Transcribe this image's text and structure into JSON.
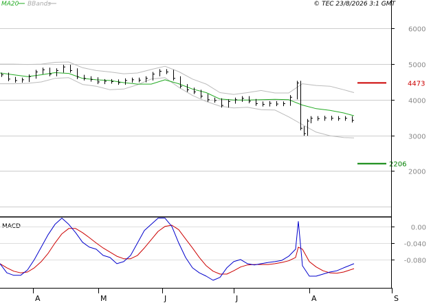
{
  "chart_data": [
    {
      "type": "line",
      "panel": "price",
      "legend": {
        "ma": "MA20",
        "bbands": "BBands"
      },
      "header_info": "© TEC 23/8/2026 3:1 GMT",
      "y_ticks": [
        "6000",
        "5000",
        "4000",
        "3000",
        "2000"
      ],
      "ylim": [
        1000,
        6800
      ],
      "grid": true,
      "x_labels": [
        "A",
        "M",
        "J",
        "J",
        "A",
        "S"
      ],
      "levels": [
        {
          "value": 4473,
          "label": "4473",
          "color": "#cc0000"
        },
        {
          "value": 2206,
          "label": "2206",
          "color": "#008000"
        }
      ],
      "series": [
        {
          "name": "MA20",
          "color": "#22aa22",
          "x": [
            0,
            20,
            40,
            60,
            80,
            100,
            120,
            140,
            160,
            180,
            200,
            220,
            240,
            260,
            280,
            300,
            320,
            340,
            360,
            380,
            400,
            420,
            440,
            460,
            480,
            500,
            515
          ],
          "values": [
            4750,
            4700,
            4650,
            4700,
            4760,
            4740,
            4600,
            4560,
            4540,
            4480,
            4440,
            4440,
            4560,
            4450,
            4300,
            4200,
            4020,
            3990,
            3990,
            4000,
            4010,
            4000,
            3850,
            3750,
            3700,
            3630,
            3550
          ]
        },
        {
          "name": "BBands upper",
          "color": "#bbbbbb",
          "x": [
            0,
            20,
            40,
            60,
            80,
            100,
            120,
            140,
            160,
            180,
            200,
            220,
            240,
            260,
            280,
            300,
            320,
            340,
            360,
            380,
            400,
            420,
            440,
            460,
            480,
            500,
            515
          ],
          "values": [
            5000,
            5000,
            4990,
            5000,
            5050,
            5060,
            4900,
            4820,
            4780,
            4730,
            4750,
            4850,
            4940,
            4790,
            4580,
            4440,
            4200,
            4150,
            4200,
            4260,
            4190,
            4190,
            4450,
            4400,
            4380,
            4280,
            4200
          ]
        },
        {
          "name": "BBands lower",
          "color": "#bbbbbb",
          "x": [
            0,
            20,
            40,
            60,
            80,
            100,
            120,
            140,
            160,
            180,
            200,
            220,
            240,
            260,
            280,
            300,
            320,
            340,
            360,
            380,
            400,
            420,
            440,
            460,
            480,
            500,
            515
          ],
          "values": [
            4450,
            4450,
            4460,
            4500,
            4600,
            4620,
            4430,
            4380,
            4280,
            4300,
            4420,
            4580,
            4620,
            4350,
            4120,
            3950,
            3820,
            3770,
            3790,
            3720,
            3710,
            3520,
            3300,
            3090,
            2990,
            2940,
            2930
          ]
        },
        {
          "name": "Price",
          "color": "#000000",
          "x": [
            2,
            12,
            22,
            32,
            42,
            52,
            62,
            72,
            82,
            92,
            102,
            112,
            122,
            132,
            142,
            152,
            162,
            172,
            182,
            192,
            202,
            212,
            222,
            232,
            242,
            252,
            262,
            272,
            282,
            292,
            302,
            312,
            322,
            332,
            342,
            352,
            362,
            372,
            382,
            392,
            402,
            412,
            422,
            432,
            437,
            442,
            447,
            452,
            462,
            472,
            482,
            492,
            502,
            512
          ],
          "values": [
            4700,
            4580,
            4540,
            4560,
            4650,
            4780,
            4840,
            4720,
            4820,
            4920,
            4820,
            4640,
            4600,
            4570,
            4500,
            4520,
            4510,
            4480,
            4540,
            4560,
            4550,
            4600,
            4720,
            4800,
            4780,
            4600,
            4380,
            4280,
            4220,
            4100,
            4000,
            3980,
            3840,
            3950,
            4000,
            4040,
            3960,
            3890,
            3870,
            3900,
            3880,
            3890,
            4070,
            4470,
            3200,
            3050,
            3400,
            3480,
            3470,
            3490,
            3480,
            3470,
            3480,
            3420
          ]
        }
      ]
    },
    {
      "type": "line",
      "panel": "macd",
      "title": "MACD",
      "y_ticks": [
        "0.00",
        "-0.040",
        "-0.080"
      ],
      "ylim": [
        -0.145,
        0.018
      ],
      "series": [
        {
          "name": "MACD",
          "color": "#0000cc",
          "x": [
            0,
            10,
            20,
            30,
            40,
            50,
            60,
            70,
            80,
            90,
            100,
            110,
            120,
            130,
            140,
            150,
            160,
            170,
            180,
            190,
            200,
            210,
            220,
            230,
            240,
            250,
            260,
            270,
            280,
            290,
            300,
            310,
            320,
            330,
            340,
            350,
            360,
            370,
            380,
            390,
            400,
            410,
            420,
            430,
            434,
            440,
            450,
            460,
            470,
            480,
            490,
            500,
            515
          ],
          "values": [
            -0.09,
            -0.112,
            -0.118,
            -0.118,
            -0.105,
            -0.08,
            -0.05,
            -0.02,
            0.005,
            0.02,
            0.005,
            -0.015,
            -0.038,
            -0.05,
            -0.055,
            -0.07,
            -0.075,
            -0.09,
            -0.085,
            -0.07,
            -0.04,
            -0.01,
            0.005,
            0.02,
            0.02,
            0.0,
            -0.04,
            -0.075,
            -0.1,
            -0.112,
            -0.12,
            -0.13,
            -0.123,
            -0.1,
            -0.085,
            -0.08,
            -0.09,
            -0.093,
            -0.09,
            -0.087,
            -0.085,
            -0.082,
            -0.072,
            -0.055,
            0.012,
            -0.095,
            -0.12,
            -0.12,
            -0.115,
            -0.11,
            -0.107,
            -0.1,
            -0.09
          ]
        },
        {
          "name": "Signal",
          "color": "#cc0000",
          "x": [
            0,
            10,
            20,
            30,
            40,
            50,
            60,
            70,
            80,
            90,
            100,
            110,
            120,
            130,
            140,
            150,
            160,
            170,
            180,
            190,
            200,
            210,
            220,
            230,
            240,
            250,
            260,
            270,
            280,
            290,
            300,
            310,
            320,
            330,
            340,
            350,
            360,
            370,
            380,
            390,
            400,
            410,
            420,
            430,
            434,
            440,
            450,
            460,
            470,
            480,
            490,
            500,
            515
          ],
          "values": [
            -0.09,
            -0.1,
            -0.108,
            -0.112,
            -0.11,
            -0.1,
            -0.085,
            -0.065,
            -0.04,
            -0.018,
            -0.005,
            -0.005,
            -0.015,
            -0.027,
            -0.04,
            -0.052,
            -0.062,
            -0.072,
            -0.078,
            -0.078,
            -0.07,
            -0.052,
            -0.032,
            -0.012,
            0.0,
            0.003,
            -0.008,
            -0.03,
            -0.052,
            -0.075,
            -0.095,
            -0.108,
            -0.115,
            -0.115,
            -0.107,
            -0.098,
            -0.093,
            -0.092,
            -0.092,
            -0.092,
            -0.09,
            -0.087,
            -0.083,
            -0.075,
            -0.05,
            -0.055,
            -0.085,
            -0.098,
            -0.107,
            -0.112,
            -0.113,
            -0.11,
            -0.102
          ]
        }
      ]
    }
  ]
}
